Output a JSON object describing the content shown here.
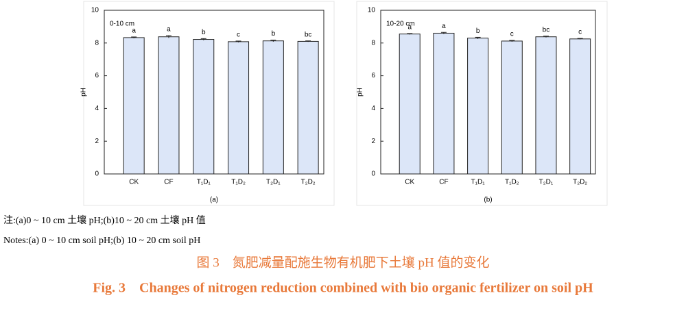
{
  "chart_data": [
    {
      "type": "bar",
      "title": "0-10 cm",
      "panel": "(a)",
      "ylabel": "pH",
      "categories": [
        "CK",
        "CF",
        "T₁D₁",
        "T₁D₂",
        "T₂D₁",
        "T₂D₂"
      ],
      "values": [
        8.33,
        8.38,
        8.22,
        8.08,
        8.13,
        8.1
      ],
      "errors": [
        0.04,
        0.07,
        0.05,
        0.04,
        0.05,
        0.03
      ],
      "letters": [
        "a",
        "a",
        "b",
        "c",
        "b",
        "bc"
      ],
      "color": "#dce6f8",
      "ylim": [
        0,
        10
      ],
      "yticks": [
        0,
        2,
        4,
        6,
        8,
        10
      ]
    },
    {
      "type": "bar",
      "title": "10-20 cm",
      "panel": "(b)",
      "ylabel": "pH",
      "categories": [
        "CK",
        "CF",
        "T₁D₁",
        "T₁D₂",
        "T₂D₁",
        "T₂D₂"
      ],
      "values": [
        8.55,
        8.6,
        8.3,
        8.12,
        8.38,
        8.25
      ],
      "errors": [
        0.03,
        0.05,
        0.05,
        0.04,
        0.04,
        0.03
      ],
      "letters": [
        "a",
        "a",
        "b",
        "c",
        "bc",
        "c"
      ],
      "color": "#dce6f8",
      "ylim": [
        0,
        10
      ],
      "yticks": [
        0,
        2,
        4,
        6,
        8,
        10
      ]
    }
  ],
  "notes": [
    "注:(a)0 ~ 10 cm 土壤 pH;(b)10 ~ 20 cm 土壤 pH 值",
    "Notes:(a) 0 ~ 10 cm soil pH;(b) 10 ~ 20 cm soil pH"
  ],
  "caption": {
    "zh": "图 3　氮肥减量配施生物有机肥下土壤 pH 值的变化",
    "en": "Fig. 3　Changes of nitrogen reduction combined with bio organic fertilizer on soil pH"
  }
}
